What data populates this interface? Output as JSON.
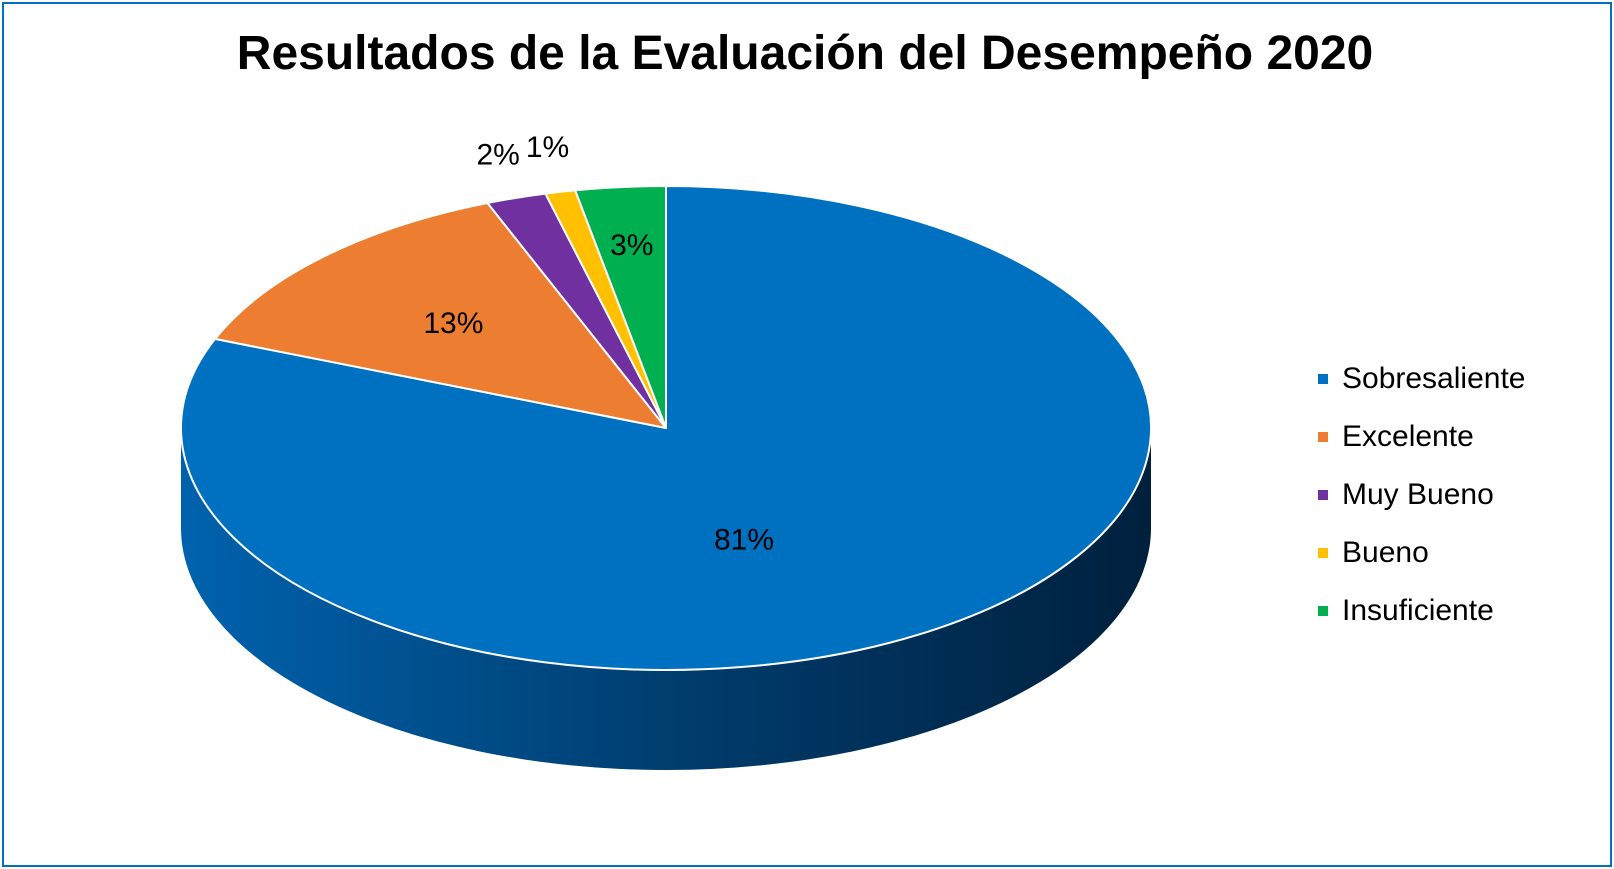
{
  "chart_data": {
    "type": "pie",
    "style": "3d",
    "title": "Resultados de la Evaluación del Desempeño 2020",
    "categories": [
      "Sobresaliente",
      "Excelente",
      "Muy Bueno",
      "Bueno",
      "Insuficiente"
    ],
    "values": [
      81,
      13,
      2,
      1,
      3
    ],
    "value_labels": [
      "81%",
      "13%",
      "2%",
      "1%",
      "3%"
    ],
    "colors": [
      "#0070c0",
      "#ed7d31",
      "#7030a0",
      "#ffc000",
      "#00b050"
    ],
    "legend_position": "right"
  }
}
